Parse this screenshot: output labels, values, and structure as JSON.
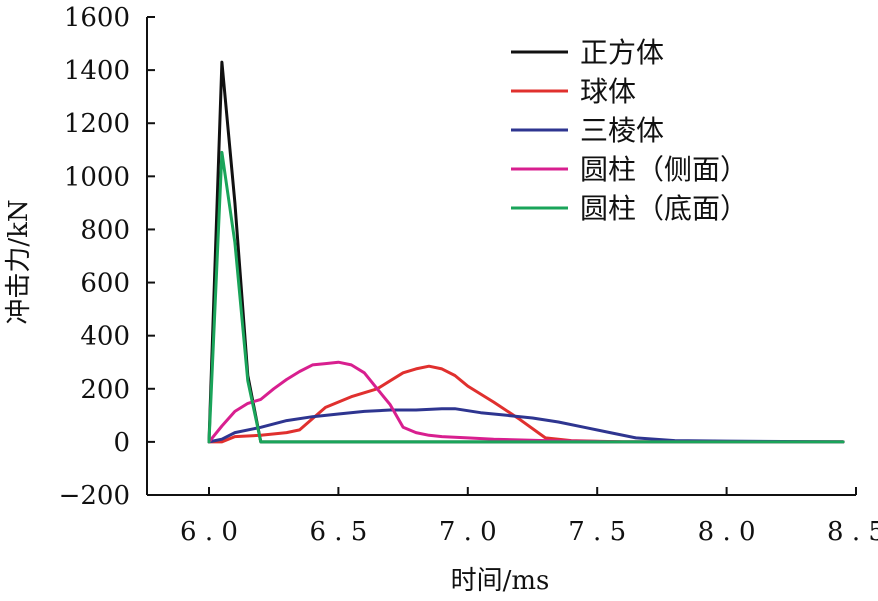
{
  "chart_data": {
    "type": "line",
    "title": "",
    "xlabel": "时间/ms",
    "ylabel": "冲击力/kN",
    "xlim": [
      5.85,
      8.5
    ],
    "ylim": [
      -200,
      1600
    ],
    "x_ticks": [
      {
        "value": 6.0,
        "label": "6.0"
      },
      {
        "value": 6.5,
        "label": "6.5"
      },
      {
        "value": 7.0,
        "label": "7.0"
      },
      {
        "value": 7.5,
        "label": "7.5"
      },
      {
        "value": 8.0,
        "label": "8.0"
      },
      {
        "value": 8.5,
        "label": "8.5"
      }
    ],
    "y_ticks": [
      {
        "value": 1600,
        "label": "1600"
      },
      {
        "value": 1400,
        "label": "1400"
      },
      {
        "value": 1200,
        "label": "1200"
      },
      {
        "value": 1000,
        "label": "1000"
      },
      {
        "value": 800,
        "label": "800"
      },
      {
        "value": 600,
        "label": "600"
      },
      {
        "value": 400,
        "label": "400"
      },
      {
        "value": 200,
        "label": "200"
      },
      {
        "value": 0,
        "label": "0"
      },
      {
        "value": -200,
        "label": "−200"
      }
    ],
    "grid": false,
    "legend_position": "top-right",
    "series": [
      {
        "name": "正方体",
        "color": "#111111",
        "points": [
          [
            6.0,
            0
          ],
          [
            6.05,
            1430
          ],
          [
            6.1,
            900
          ],
          [
            6.15,
            250
          ],
          [
            6.2,
            0
          ],
          [
            6.25,
            0
          ],
          [
            8.45,
            0
          ]
        ]
      },
      {
        "name": "球体",
        "color": "#e0302e",
        "points": [
          [
            6.0,
            0
          ],
          [
            6.05,
            0
          ],
          [
            6.1,
            20
          ],
          [
            6.2,
            25
          ],
          [
            6.3,
            35
          ],
          [
            6.35,
            45
          ],
          [
            6.45,
            130
          ],
          [
            6.55,
            170
          ],
          [
            6.65,
            200
          ],
          [
            6.75,
            260
          ],
          [
            6.8,
            275
          ],
          [
            6.85,
            285
          ],
          [
            6.9,
            275
          ],
          [
            6.95,
            250
          ],
          [
            7.0,
            210
          ],
          [
            7.1,
            150
          ],
          [
            7.2,
            85
          ],
          [
            7.3,
            15
          ],
          [
            7.4,
            5
          ],
          [
            7.6,
            0
          ],
          [
            8.45,
            0
          ]
        ]
      },
      {
        "name": "三棱体",
        "color": "#2e3590",
        "points": [
          [
            6.0,
            0
          ],
          [
            6.05,
            10
          ],
          [
            6.1,
            35
          ],
          [
            6.2,
            55
          ],
          [
            6.3,
            80
          ],
          [
            6.4,
            95
          ],
          [
            6.5,
            105
          ],
          [
            6.6,
            115
          ],
          [
            6.7,
            120
          ],
          [
            6.8,
            120
          ],
          [
            6.9,
            125
          ],
          [
            6.95,
            125
          ],
          [
            7.05,
            110
          ],
          [
            7.15,
            100
          ],
          [
            7.25,
            90
          ],
          [
            7.35,
            75
          ],
          [
            7.45,
            55
          ],
          [
            7.55,
            35
          ],
          [
            7.65,
            15
          ],
          [
            7.8,
            5
          ],
          [
            8.0,
            3
          ],
          [
            8.45,
            0
          ]
        ]
      },
      {
        "name": "圆柱（侧面）",
        "color": "#d81f8f",
        "points": [
          [
            6.0,
            0
          ],
          [
            6.05,
            60
          ],
          [
            6.1,
            115
          ],
          [
            6.15,
            145
          ],
          [
            6.2,
            160
          ],
          [
            6.25,
            200
          ],
          [
            6.3,
            235
          ],
          [
            6.35,
            265
          ],
          [
            6.4,
            290
          ],
          [
            6.45,
            295
          ],
          [
            6.5,
            300
          ],
          [
            6.55,
            290
          ],
          [
            6.6,
            260
          ],
          [
            6.65,
            200
          ],
          [
            6.7,
            140
          ],
          [
            6.75,
            55
          ],
          [
            6.8,
            35
          ],
          [
            6.85,
            25
          ],
          [
            6.9,
            20
          ],
          [
            7.0,
            15
          ],
          [
            7.1,
            10
          ],
          [
            7.3,
            5
          ],
          [
            7.6,
            0
          ],
          [
            8.45,
            0
          ]
        ]
      },
      {
        "name": "圆柱（底面）",
        "color": "#1aa45a",
        "points": [
          [
            6.0,
            0
          ],
          [
            6.05,
            1090
          ],
          [
            6.1,
            750
          ],
          [
            6.15,
            230
          ],
          [
            6.2,
            0
          ],
          [
            6.25,
            0
          ],
          [
            8.45,
            0
          ]
        ]
      }
    ]
  }
}
